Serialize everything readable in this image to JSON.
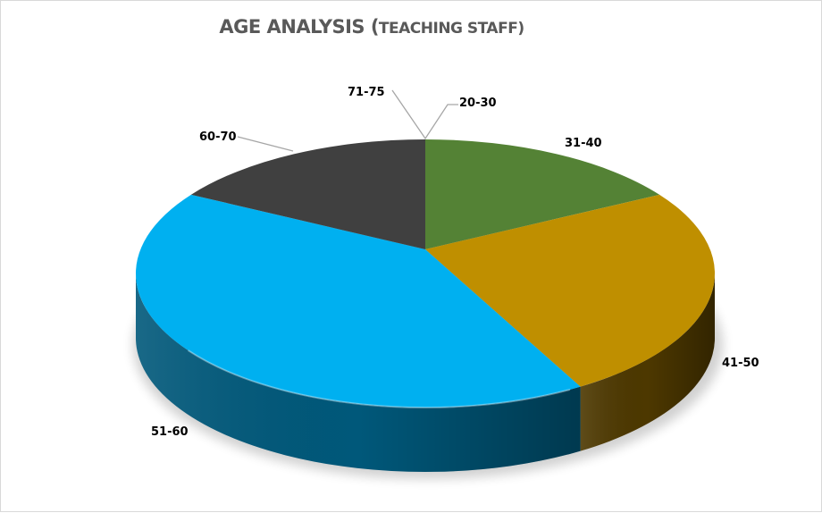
{
  "chart_data": {
    "type": "pie",
    "title": "AGE ANALYSIS (TEACHING STAFF)",
    "title_main": "AGE ANALYSIS (",
    "title_sub": "TEACHING STAFF)",
    "style": "3d",
    "categories": [
      "20-30",
      "31-40",
      "41-50",
      "51-60",
      "60-70",
      "71-75"
    ],
    "values": [
      0,
      15,
      26,
      44,
      15,
      0
    ],
    "colors": [
      "#4472c4",
      "#548235",
      "#bf8f00",
      "#00b0f0",
      "#404040",
      "#a5a5a5"
    ],
    "side_colors": [
      "#2f528f",
      "#385723",
      "#4d3800",
      "#00587a",
      "#202020",
      "#7f7f7f"
    ],
    "legend": "none",
    "data_labels": "category names"
  },
  "labels": {
    "l2030": "20-30",
    "l3140": "31-40",
    "l4150": "41-50",
    "l5160": "51-60",
    "l6070": "60-70",
    "l7175": "71-75"
  }
}
